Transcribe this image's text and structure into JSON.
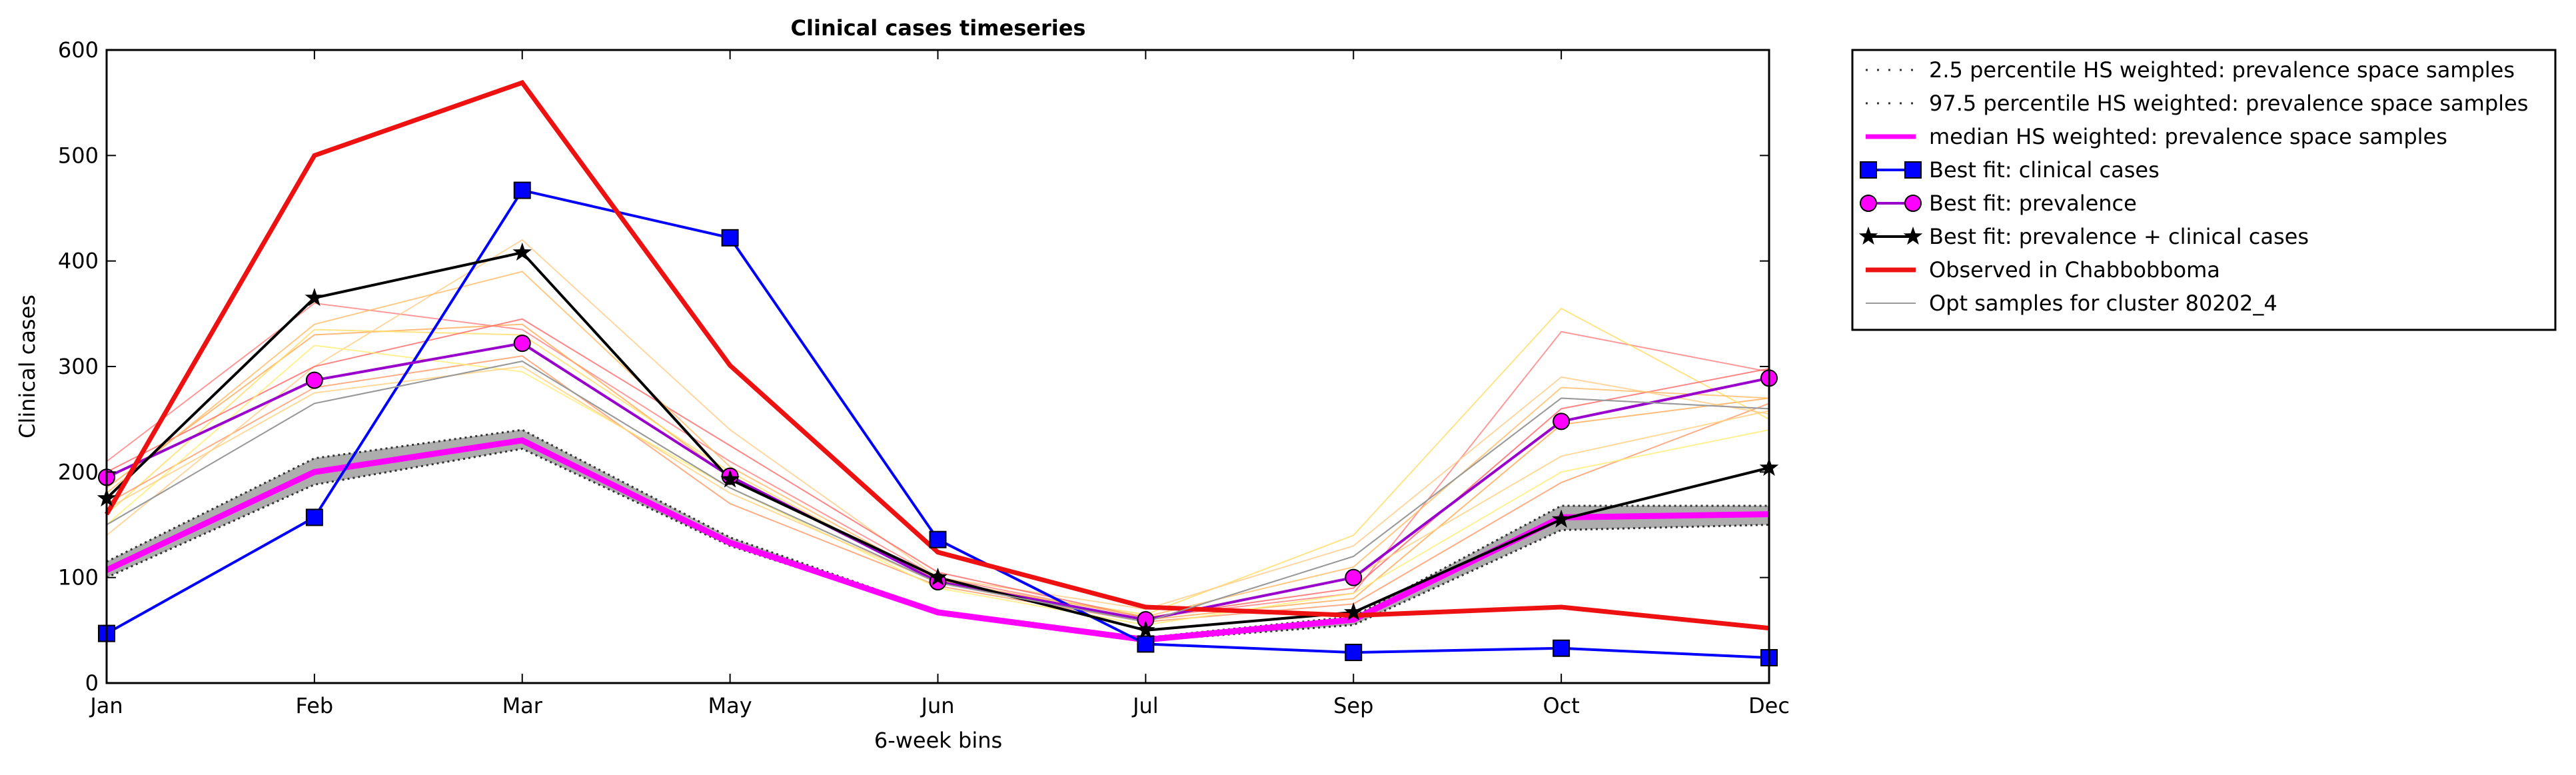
{
  "chart_data": {
    "type": "line",
    "title": "Clinical cases timeseries",
    "xlabel": "6-week bins",
    "ylabel": "Clinical cases",
    "categories": [
      "Jan",
      "Feb",
      "Mar",
      "May",
      "Jun",
      "Jul",
      "Sep",
      "Oct",
      "Dec"
    ],
    "ylim": [
      0,
      600
    ],
    "yticks": [
      0,
      100,
      200,
      300,
      400,
      500,
      600
    ],
    "grid": false,
    "legend_position": "outside-right",
    "series": [
      {
        "name": "2.5 percentile HS weighted: prevalence space samples",
        "style": "dotted",
        "color": "#555555",
        "values": [
          100,
          188,
          222,
          130,
          67,
          40,
          55,
          145,
          150
        ]
      },
      {
        "name": "97.5 percentile HS weighted: prevalence space samples",
        "style": "dotted",
        "color": "#555555",
        "values": [
          115,
          213,
          240,
          138,
          68,
          43,
          63,
          168,
          168
        ]
      },
      {
        "name": "median HS weighted: prevalence space samples",
        "style": "thick",
        "color": "#ff00ff",
        "values": [
          107,
          200,
          230,
          133,
          67,
          41,
          60,
          157,
          160
        ]
      },
      {
        "name": "Best fit: clinical cases",
        "style": "square",
        "color": "#0000ff",
        "values": [
          47,
          157,
          467,
          422,
          136,
          37,
          29,
          33,
          24
        ]
      },
      {
        "name": "Best fit: prevalence",
        "style": "circle",
        "color": "#9900cc",
        "marker_color": "#ff00ff",
        "values": [
          195,
          287,
          322,
          196,
          96,
          60,
          100,
          248,
          289
        ]
      },
      {
        "name": "Best fit: prevalence + clinical cases",
        "style": "star",
        "color": "#000000",
        "values": [
          175,
          365,
          408,
          193,
          100,
          50,
          67,
          155,
          204
        ]
      },
      {
        "name": "Observed in Chabbobboma",
        "style": "thick",
        "color": "#ee1111",
        "values": [
          160,
          500,
          569,
          301,
          124,
          72,
          64,
          72,
          52
        ]
      },
      {
        "name": "Opt samples for cluster 80202_4",
        "style": "thin",
        "color": "#999999",
        "values": [
          150,
          265,
          305,
          185,
          95,
          58,
          120,
          270,
          260
        ]
      }
    ],
    "opt_samples": [
      {
        "color": "#ff8080",
        "values": [
          210,
          360,
          335,
          210,
          100,
          62,
          85,
          333,
          295
        ]
      },
      {
        "color": "#ffaa55",
        "values": [
          185,
          330,
          340,
          195,
          98,
          60,
          80,
          245,
          270
        ]
      },
      {
        "color": "#ffdd66",
        "values": [
          160,
          335,
          330,
          200,
          95,
          65,
          140,
          355,
          250
        ]
      },
      {
        "color": "#ff9966",
        "values": [
          170,
          280,
          310,
          170,
          92,
          58,
          75,
          190,
          265
        ]
      },
      {
        "color": "#ffcc88",
        "values": [
          140,
          300,
          420,
          240,
          100,
          70,
          130,
          290,
          255
        ]
      },
      {
        "color": "#ff6666",
        "values": [
          200,
          300,
          345,
          225,
          105,
          62,
          90,
          260,
          298
        ]
      },
      {
        "color": "#ffee77",
        "values": [
          150,
          320,
          295,
          185,
          90,
          55,
          85,
          200,
          240
        ]
      },
      {
        "color": "#ffd080",
        "values": [
          165,
          275,
          300,
          180,
          95,
          60,
          100,
          215,
          258
        ]
      },
      {
        "color": "#ffbb66",
        "values": [
          180,
          340,
          390,
          205,
          97,
          63,
          110,
          280,
          270
        ]
      },
      {
        "color": "#aaaaaa",
        "values": [
          150,
          265,
          305,
          185,
          95,
          58,
          120,
          270,
          260
        ]
      }
    ]
  }
}
